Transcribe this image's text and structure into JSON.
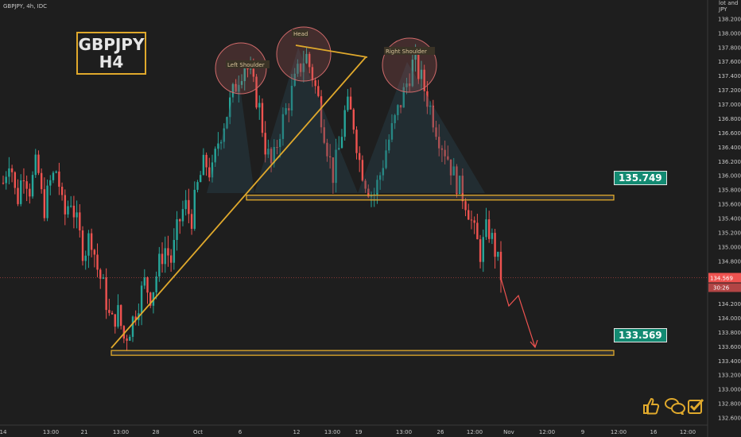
{
  "header": {
    "ticker": "GBPJPY, 4h, IDC"
  },
  "symbol_box": {
    "line1": "GBPJPY",
    "line2": "H4"
  },
  "axis": {
    "currency": "JPY",
    "currency_top": "lot and",
    "price_ticks": [
      "138.200",
      "138.000",
      "137.800",
      "137.600",
      "137.400",
      "137.200",
      "137.000",
      "136.800",
      "136.600",
      "136.400",
      "136.200",
      "136.000",
      "135.800",
      "135.600",
      "135.400",
      "135.200",
      "135.000",
      "134.800",
      "134.600",
      "134.400",
      "134.200",
      "134.000",
      "133.800",
      "133.600",
      "133.400",
      "133.200",
      "133.000",
      "132.800",
      "132.600"
    ],
    "time_ticks": [
      "14",
      "13:00",
      "21",
      "13:00",
      "28",
      "Oct",
      "6",
      "12",
      "13:00",
      "19",
      "13:00",
      "26",
      "12:00",
      "Nov",
      "12:00",
      "9",
      "12:00",
      "16",
      "12:00"
    ]
  },
  "current_price": {
    "value": "134.569",
    "countdown": "30:26",
    "color": "#ef5350"
  },
  "patterns": {
    "left_shoulder": "Left Shoulder",
    "head": "Head",
    "right_shoulder": "Right Shoulder"
  },
  "levels": {
    "neckline": "135.749",
    "target": "133.569"
  },
  "colors": {
    "up": "#26a69a",
    "down": "#ef5350",
    "accent": "#e0a92c",
    "background": "#1e1e1e"
  },
  "icons": [
    "thumbs-up-icon",
    "chat-bubbles-icon",
    "check-box-icon"
  ],
  "chart_data": {
    "type": "candlestick",
    "ylim": [
      132.5,
      138.4
    ],
    "neckline": 135.749,
    "target": 133.569,
    "last_price": 134.569,
    "close_path": [
      135.9,
      136.3,
      135.6,
      136.1,
      135.8,
      136.2,
      135.5,
      135.9,
      136.1,
      135.4,
      135.7,
      135.3,
      134.9,
      135.2,
      134.7,
      134.4,
      133.9,
      134.1,
      133.7,
      133.9,
      134.2,
      134.5,
      134.3,
      134.7,
      135.0,
      134.8,
      135.3,
      135.6,
      135.4,
      135.9,
      136.2,
      136.0,
      136.5,
      136.8,
      137.1,
      137.4,
      137.6,
      137.3,
      137.0,
      136.4,
      136.1,
      136.6,
      136.9,
      137.2,
      137.5,
      137.7,
      137.4,
      137.0,
      136.5,
      136.0,
      136.4,
      137.0,
      136.8,
      136.2,
      135.9,
      135.7,
      136.0,
      136.4,
      136.7,
      137.0,
      137.3,
      137.6,
      137.4,
      137.1,
      136.8,
      136.5,
      136.3,
      136.0,
      135.8,
      135.6,
      135.2,
      134.9,
      135.3,
      135.0,
      134.6
    ]
  }
}
